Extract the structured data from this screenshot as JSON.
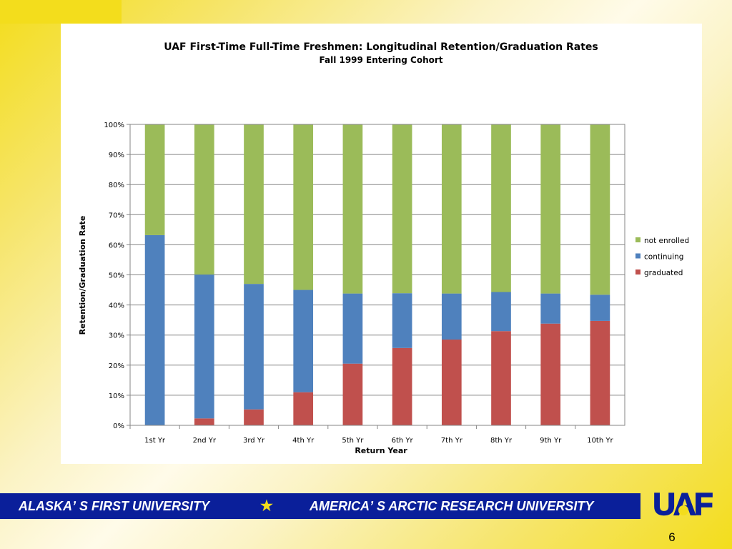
{
  "slide": {
    "banner_left": "ALASKAʼ S FIRST UNIVERSITY",
    "banner_star": "★",
    "banner_right": "AMERICAʼ S ARCTIC RESEARCH UNIVERSITY",
    "logo_text": "UAF",
    "page_number": "6"
  },
  "colors": {
    "graduated": "#c0504d",
    "continuing": "#4f81bd",
    "not_enrolled": "#9bbb59",
    "banner": "#0a1f9a",
    "accent_yellow": "#f3dd1c"
  },
  "chart_data": {
    "type": "bar",
    "stacked": true,
    "title": "UAF First-Time Full-Time Freshmen: Longitudinal Retention/Graduation Rates",
    "subtitle": "Fall 1999 Entering Cohort",
    "xlabel": "Return Year",
    "ylabel": "Retention/Graduation Rate",
    "ylim": [
      0,
      100
    ],
    "yticks": [
      "0%",
      "10%",
      "20%",
      "30%",
      "40%",
      "50%",
      "60%",
      "70%",
      "80%",
      "90%",
      "100%"
    ],
    "grid": true,
    "legend_position": "right",
    "categories": [
      "1st Yr",
      "2nd Yr",
      "3rd Yr",
      "4th Yr",
      "5th Yr",
      "6th Yr",
      "7th Yr",
      "8th Yr",
      "9th Yr",
      "10th Yr"
    ],
    "series": [
      {
        "name": "graduated",
        "color": "#c0504d",
        "values": [
          0,
          2.3,
          5.3,
          11.0,
          20.5,
          25.7,
          28.5,
          31.3,
          33.8,
          34.7
        ]
      },
      {
        "name": "continuing",
        "color": "#4f81bd",
        "values": [
          63.2,
          47.8,
          41.7,
          34.0,
          23.3,
          18.2,
          15.3,
          13.0,
          10.0,
          8.7
        ]
      },
      {
        "name": "not enrolled",
        "color": "#9bbb59",
        "values": [
          36.8,
          49.9,
          53.0,
          55.0,
          56.2,
          56.1,
          56.2,
          55.7,
          56.2,
          56.6
        ]
      }
    ],
    "legend_order": [
      "not enrolled",
      "continuing",
      "graduated"
    ]
  }
}
